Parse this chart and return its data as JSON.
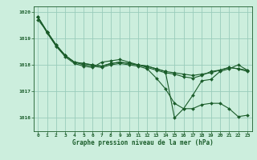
{
  "title": "Graphe pression niveau de la mer (hPa)",
  "background_color": "#cceedd",
  "plot_bg_color": "#cceedd",
  "grid_color": "#99ccbb",
  "line_color": "#1a5c2a",
  "marker_color": "#1a5c2a",
  "xlim": [
    -0.5,
    23.5
  ],
  "ylim": [
    1015.5,
    1020.2
  ],
  "yticks": [
    1016,
    1017,
    1018,
    1019,
    1020
  ],
  "xticks": [
    0,
    1,
    2,
    3,
    4,
    5,
    6,
    7,
    8,
    9,
    10,
    11,
    12,
    13,
    14,
    15,
    16,
    17,
    18,
    19,
    20,
    21,
    22,
    23
  ],
  "series": [
    [
      1019.8,
      1019.25,
      1018.75,
      1018.35,
      1018.1,
      1018.05,
      1018.0,
      1017.95,
      1018.05,
      1018.1,
      1018.05,
      1018.0,
      1017.95,
      1017.85,
      1017.75,
      1017.7,
      1017.65,
      1017.6,
      1017.65,
      1017.7,
      1017.8,
      1017.9,
      1017.85,
      1017.8
    ],
    [
      1019.8,
      1019.2,
      1018.7,
      1018.35,
      1018.1,
      1018.0,
      1017.95,
      1017.9,
      1018.0,
      1018.05,
      1018.0,
      1017.95,
      1017.85,
      1017.5,
      1017.1,
      1016.55,
      1016.35,
      1016.35,
      1016.5,
      1016.55,
      1016.55,
      1016.35,
      1016.05,
      1016.1
    ],
    [
      1019.8,
      1019.25,
      1018.75,
      1018.35,
      1018.1,
      1018.05,
      1018.0,
      1017.95,
      1018.05,
      1018.1,
      1018.05,
      1018.0,
      1017.95,
      1017.85,
      1017.75,
      1016.0,
      1016.35,
      1016.85,
      1017.4,
      1017.45,
      1017.75,
      1017.85,
      1018.0,
      1017.8
    ],
    [
      1019.7,
      1019.25,
      1018.7,
      1018.3,
      1018.05,
      1017.95,
      1017.9,
      1018.1,
      1018.15,
      1018.2,
      1018.1,
      1018.0,
      1017.9,
      1017.8,
      1017.7,
      1017.65,
      1017.55,
      1017.5,
      1017.6,
      1017.75,
      1017.8,
      1017.9,
      1017.85,
      1017.75
    ]
  ],
  "title_fontsize": 5.5,
  "tick_fontsize": 4.5,
  "xlabel_pad": 1
}
